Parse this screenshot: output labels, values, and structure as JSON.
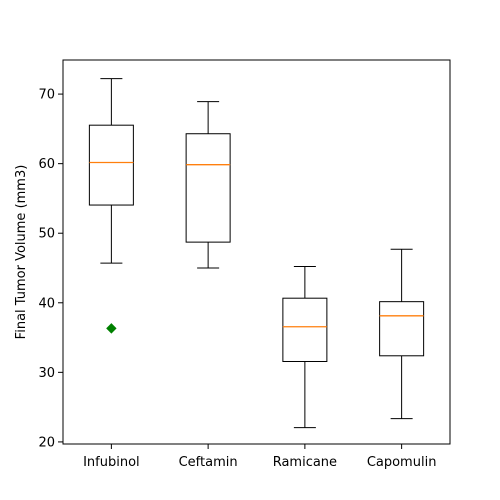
{
  "chart_data": {
    "type": "box",
    "title": "",
    "xlabel": "",
    "ylabel": "Final Tumor Volume (mm3)",
    "ylim": [
      19.7,
      74.9
    ],
    "yticks": [
      20,
      30,
      40,
      50,
      60,
      70
    ],
    "grid": false,
    "categories": [
      "Infubinol",
      "Ceftamin",
      "Ramicane",
      "Capomulin"
    ],
    "boxes": [
      {
        "name": "Infubinol",
        "whisker_low": 45.7,
        "q1": 54.05,
        "median": 60.17,
        "q3": 65.53,
        "whisker_high": 72.23,
        "outliers": [
          36.32
        ]
      },
      {
        "name": "Ceftamin",
        "whisker_low": 45.0,
        "q1": 48.72,
        "median": 59.85,
        "q3": 64.3,
        "whisker_high": 68.92,
        "outliers": []
      },
      {
        "name": "Ramicane",
        "whisker_low": 22.05,
        "q1": 31.56,
        "median": 36.56,
        "q3": 40.66,
        "whisker_high": 45.22,
        "outliers": []
      },
      {
        "name": "Capomulin",
        "whisker_low": 23.34,
        "q1": 32.38,
        "median": 38.13,
        "q3": 40.16,
        "whisker_high": 47.69,
        "outliers": []
      }
    ],
    "colors": {
      "box": "#000000",
      "median": "#ff7f0e",
      "outlier": "#008000"
    },
    "outlier_marker": "diamond"
  }
}
